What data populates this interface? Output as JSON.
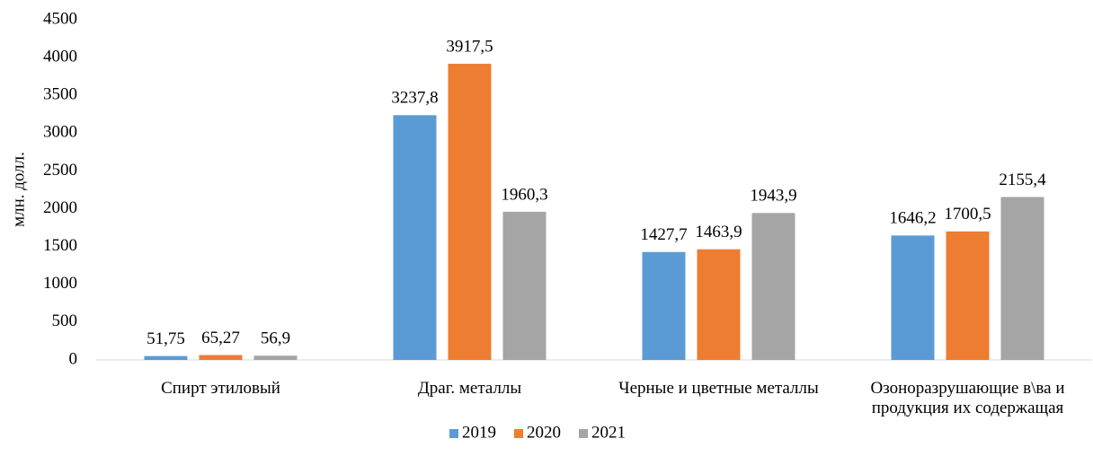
{
  "chart_data": {
    "type": "bar",
    "y_label": "млн. долл.",
    "categories": [
      "Спирт этиловый",
      "Драг. металлы",
      "Черные и цветные металлы",
      "Озоноразрушающие в\\ва и продукция их содержащая"
    ],
    "series": [
      {
        "name": "2019",
        "color": "#5b9bd5",
        "values": [
          51.75,
          3237.8,
          1427.7,
          1646.2
        ],
        "value_labels": [
          "51,75",
          "3237,8",
          "1427,7",
          "1646,2"
        ]
      },
      {
        "name": "2020",
        "color": "#ed7d31",
        "values": [
          65.27,
          3917.5,
          1463.9,
          1700.5
        ],
        "value_labels": [
          "65,27",
          "3917,5",
          "1463,9",
          "1700,5"
        ]
      },
      {
        "name": "2021",
        "color": "#a5a5a5",
        "values": [
          56.9,
          1960.3,
          1943.9,
          2155.4
        ],
        "value_labels": [
          "56,9",
          "1960,3",
          "1943,9",
          "2155,4"
        ]
      }
    ],
    "ylim": [
      0,
      4500
    ],
    "yticks": [
      0,
      500,
      1000,
      1500,
      2000,
      2500,
      3000,
      3500,
      4000,
      4500
    ],
    "grid": false,
    "legend": "bottom"
  }
}
